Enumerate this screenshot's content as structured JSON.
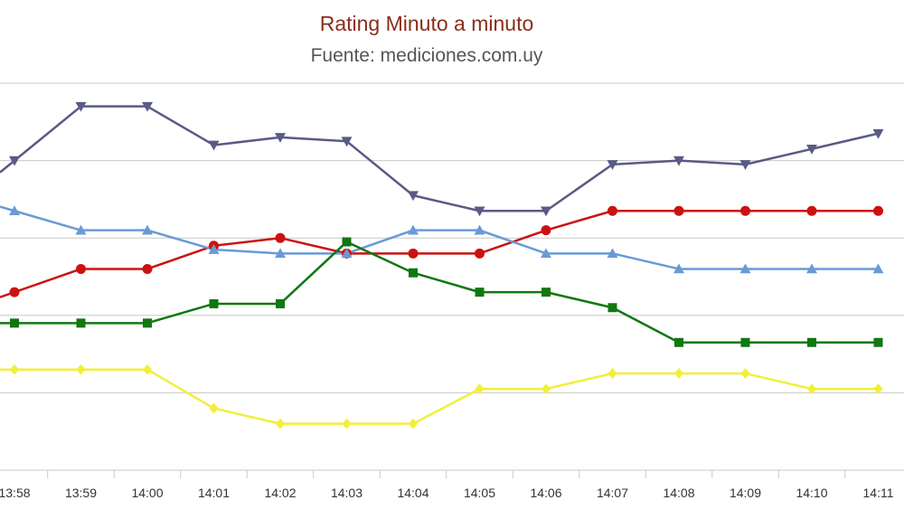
{
  "chart_data": {
    "type": "line",
    "title": "Rating Minuto a minuto",
    "subtitle": "Fuente: mediciones.com.uy",
    "categories": [
      "13:58",
      "13:59",
      "14:00",
      "14:01",
      "14:02",
      "14:03",
      "14:04",
      "14:05",
      "14:06",
      "14:07",
      "14:08",
      "14:09",
      "14:10",
      "14:11"
    ],
    "yrange": [
      0,
      10
    ],
    "grid": true,
    "legend": "none",
    "series": [
      {
        "color": "#5a5a86",
        "marker": "triangle-down",
        "values": [
          8.0,
          9.4,
          9.4,
          8.4,
          8.6,
          8.5,
          7.1,
          6.7,
          6.7,
          7.9,
          8.0,
          7.9,
          8.3,
          8.7
        ]
      },
      {
        "color": "#cc1111",
        "marker": "circle",
        "values": [
          4.6,
          5.2,
          5.2,
          5.8,
          6.0,
          5.6,
          5.6,
          5.6,
          6.2,
          6.7,
          6.7,
          6.7,
          6.7,
          6.7
        ]
      },
      {
        "color": "#6a9ad6",
        "marker": "triangle-up",
        "values": [
          6.7,
          6.2,
          6.2,
          5.7,
          5.6,
          5.6,
          6.2,
          6.2,
          5.6,
          5.6,
          5.2,
          5.2,
          5.2,
          5.2
        ]
      },
      {
        "color": "#117711",
        "marker": "square",
        "values": [
          3.8,
          3.8,
          3.8,
          4.3,
          4.3,
          5.9,
          5.1,
          4.6,
          4.6,
          4.2,
          3.3,
          3.3,
          3.3,
          3.3
        ]
      },
      {
        "color": "#f2ef3a",
        "marker": "diamond",
        "values": [
          2.6,
          2.6,
          2.6,
          1.6,
          1.2,
          1.2,
          1.2,
          2.1,
          2.1,
          2.5,
          2.5,
          2.5,
          2.1,
          2.1
        ]
      }
    ]
  }
}
